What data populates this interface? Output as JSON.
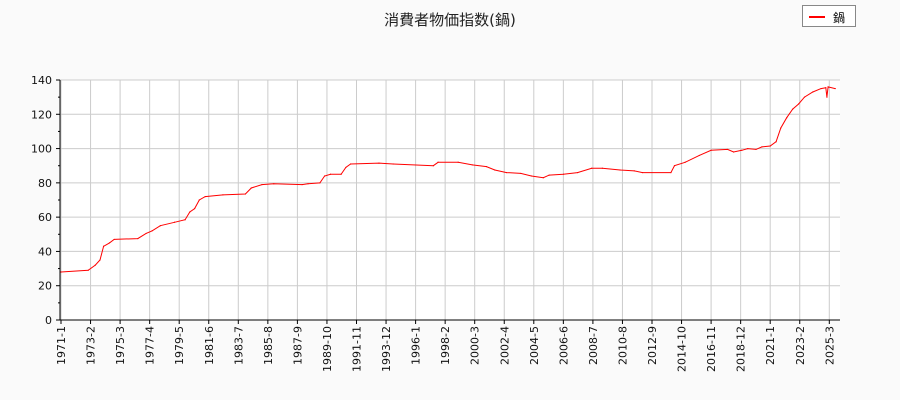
{
  "chart_data": {
    "type": "line",
    "title": "消費者物価指数(鍋)",
    "xlabel": "",
    "ylabel": "",
    "ylim": [
      0,
      140
    ],
    "yticks": [
      0,
      20,
      40,
      60,
      80,
      100,
      120,
      140
    ],
    "xticks": [
      "1971-1",
      "1973-2",
      "1975-3",
      "1977-4",
      "1979-5",
      "1981-6",
      "1983-7",
      "1985-8",
      "1987-9",
      "1989-10",
      "1991-11",
      "1993-12",
      "1996-1",
      "1998-2",
      "2000-3",
      "2002-4",
      "2004-5",
      "2006-6",
      "2008-7",
      "2010-8",
      "2012-9",
      "2014-10",
      "2016-11",
      "2018-12",
      "2021-1",
      "2023-2",
      "2025-3"
    ],
    "grid": true,
    "legend_position": "top-right",
    "series": [
      {
        "name": "鍋",
        "color": "#ff0000",
        "points": [
          [
            "1971-1",
            28
          ],
          [
            "1972-12",
            29
          ],
          [
            "1973-6",
            32
          ],
          [
            "1973-10",
            35
          ],
          [
            "1974-1",
            43
          ],
          [
            "1974-6",
            45
          ],
          [
            "1974-10",
            47
          ],
          [
            "1976-6",
            47.5
          ],
          [
            "1977-1",
            50.5
          ],
          [
            "1977-6",
            52
          ],
          [
            "1978-1",
            55
          ],
          [
            "1979-1",
            57
          ],
          [
            "1979-10",
            58.5
          ],
          [
            "1980-2",
            63
          ],
          [
            "1980-6",
            65
          ],
          [
            "1980-10",
            70
          ],
          [
            "1981-3",
            72
          ],
          [
            "1982-6",
            73
          ],
          [
            "1984-1",
            73.5
          ],
          [
            "1984-6",
            77
          ],
          [
            "1985-3",
            79
          ],
          [
            "1986-1",
            79.5
          ],
          [
            "1988-1",
            79
          ],
          [
            "1988-6",
            79.5
          ],
          [
            "1989-4",
            80
          ],
          [
            "1989-8",
            84
          ],
          [
            "1990-1",
            85
          ],
          [
            "1990-10",
            85
          ],
          [
            "1991-2",
            89
          ],
          [
            "1991-6",
            91
          ],
          [
            "1993-6",
            91.5
          ],
          [
            "1994-6",
            91
          ],
          [
            "1997-4",
            90
          ],
          [
            "1997-8",
            92
          ],
          [
            "1999-1",
            92
          ],
          [
            "2000-1",
            90.5
          ],
          [
            "2001-1",
            89.5
          ],
          [
            "2001-8",
            87.5
          ],
          [
            "2002-6",
            86
          ],
          [
            "2003-6",
            85.5
          ],
          [
            "2004-3",
            84
          ],
          [
            "2005-1",
            83
          ],
          [
            "2005-6",
            84.5
          ],
          [
            "2006-6",
            85
          ],
          [
            "2007-6",
            86
          ],
          [
            "2008-6",
            88.5
          ],
          [
            "2009-3",
            88.5
          ],
          [
            "2010-6",
            87.5
          ],
          [
            "2011-6",
            87
          ],
          [
            "2012-1",
            86
          ],
          [
            "2014-1",
            86
          ],
          [
            "2014-4",
            90
          ],
          [
            "2015-1",
            92
          ],
          [
            "2016-1",
            96
          ],
          [
            "2016-11",
            99
          ],
          [
            "2018-1",
            99.5
          ],
          [
            "2018-6",
            98
          ],
          [
            "2019-1",
            99
          ],
          [
            "2019-6",
            100
          ],
          [
            "2020-1",
            99.5
          ],
          [
            "2020-6",
            101
          ],
          [
            "2021-1",
            101.5
          ],
          [
            "2021-6",
            104
          ],
          [
            "2021-10",
            112
          ],
          [
            "2022-3",
            118
          ],
          [
            "2022-8",
            123
          ],
          [
            "2023-1",
            126
          ],
          [
            "2023-6",
            130
          ],
          [
            "2024-1",
            133
          ],
          [
            "2024-8",
            135
          ],
          [
            "2024-12",
            135.5
          ],
          [
            "2025-1",
            130
          ],
          [
            "2025-2",
            136
          ],
          [
            "2025-8",
            135
          ]
        ]
      }
    ]
  }
}
